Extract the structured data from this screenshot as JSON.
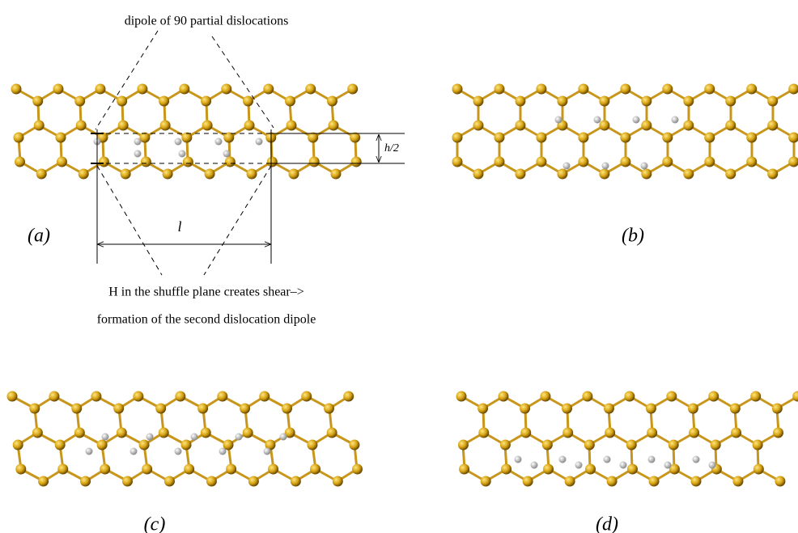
{
  "header": {
    "title": "dipole of 90 partial dislocations"
  },
  "annotations": {
    "h": "h/2",
    "l": "l",
    "caption_line1": "H in the shuffle plane creates shear–>",
    "caption_line2": "formation of the second dislocation dipole"
  },
  "panels": [
    "(a)",
    "(b)",
    "(c)",
    "(d)"
  ]
}
